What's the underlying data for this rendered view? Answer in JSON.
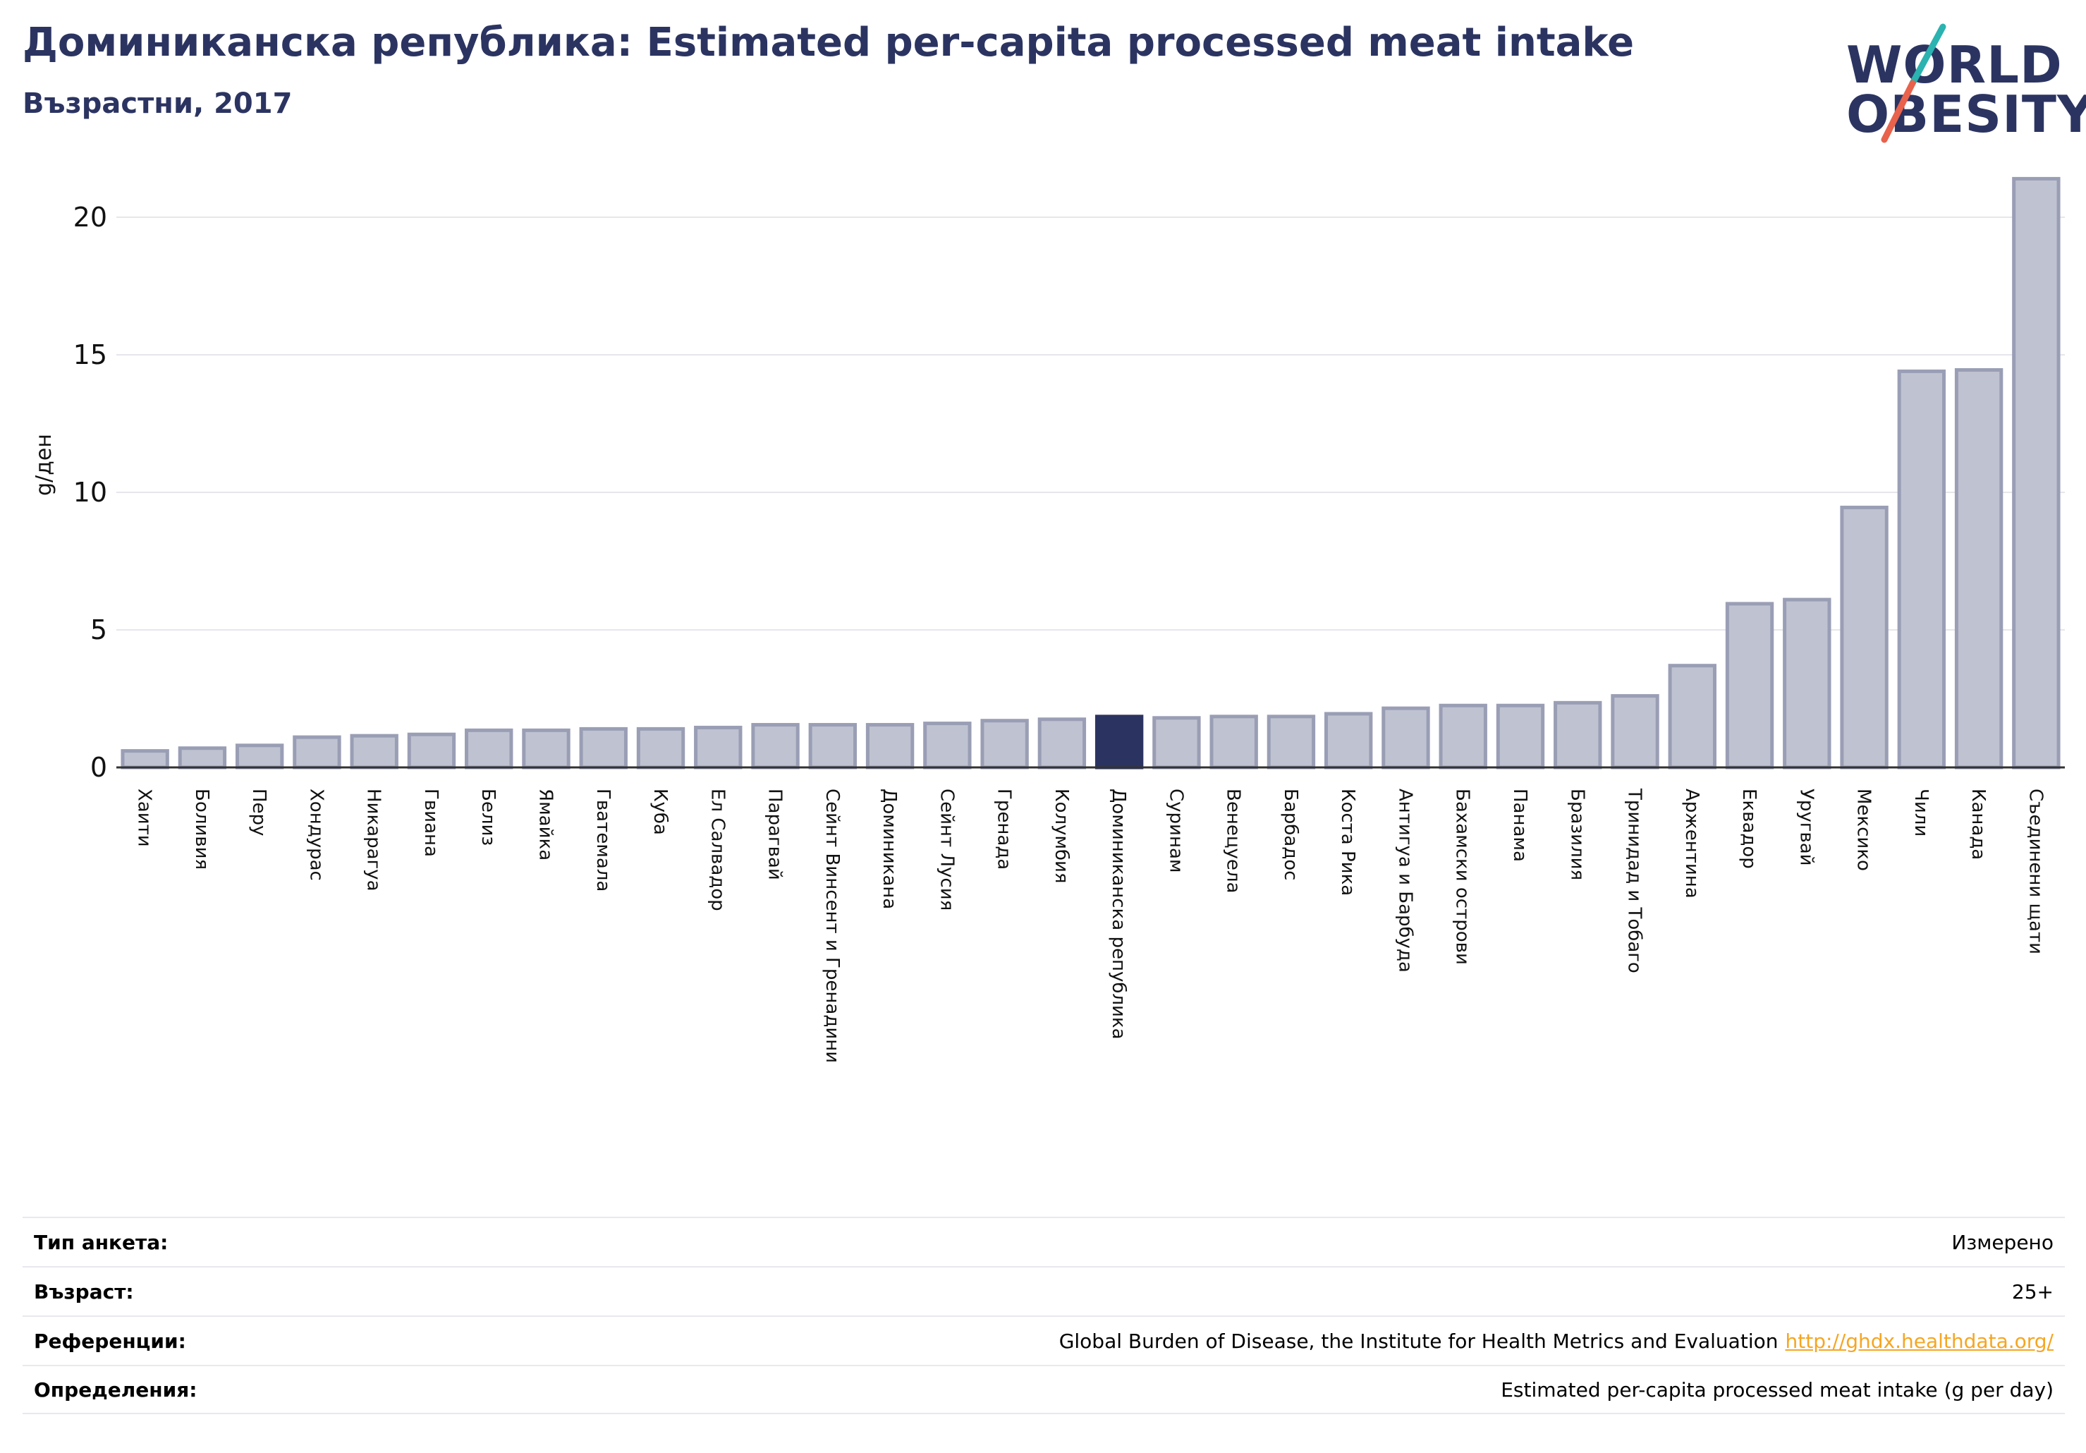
{
  "header": {
    "title": "Доминиканска република: Estimated per-capita processed meat intake",
    "subtitle": "Възрастни, 2017"
  },
  "logo": {
    "line1": "WORLD",
    "line2": "OBESITY",
    "colors": {
      "text": "#2b3461",
      "slash_top": "#2ab3b0",
      "slash_bottom": "#e8624c"
    }
  },
  "colors": {
    "bar_fill": "#bfc2d0",
    "bar_stroke": "#9a9eb5",
    "highlight": "#2b3461",
    "grid": "#e6e6ec",
    "axis": "#333333"
  },
  "chart_data": {
    "type": "bar",
    "ylabel": "g/ден",
    "ylim": [
      0,
      22
    ],
    "yticks": [
      0,
      5,
      10,
      15,
      20
    ],
    "grid": true,
    "highlight": "Доминиканска република",
    "categories": [
      "Хаити",
      "Боливия",
      "Перу",
      "Хондурас",
      "Никарагуа",
      "Гвиана",
      "Белиз",
      "Ямайка",
      "Гватемала",
      "Куба",
      "Ел Салвадор",
      "Парагвай",
      "Сейнт Винсент и Гренадини",
      "Доминикана",
      "Сейнт Лусия",
      "Гренада",
      "Колумбия",
      "Доминиканска република",
      "Суринам",
      "Венецуела",
      "Барбадос",
      "Коста Рика",
      "Антигуа и Барбуда",
      "Бахамски острови",
      "Панама",
      "Бразилия",
      "Тринидад и Тобаго",
      "Аржентина",
      "Еквадор",
      "Уругвай",
      "Мексико",
      "Чили",
      "Канада",
      "Съединени щати"
    ],
    "values": [
      0.6,
      0.7,
      0.8,
      1.1,
      1.15,
      1.2,
      1.35,
      1.35,
      1.4,
      1.4,
      1.45,
      1.55,
      1.55,
      1.55,
      1.6,
      1.7,
      1.75,
      1.85,
      1.8,
      1.85,
      1.85,
      1.95,
      2.15,
      2.25,
      2.25,
      2.35,
      2.6,
      3.7,
      5.95,
      6.1,
      9.45,
      14.4,
      14.45,
      21.4
    ]
  },
  "meta": {
    "rows": [
      {
        "key": "Тип анкета:",
        "value": "Измерено"
      },
      {
        "key": "Възраст:",
        "value": "25+"
      },
      {
        "key": "Референции:",
        "value": "Global Burden of Disease, the Institute for Health Metrics and Evaluation",
        "link": "http://ghdx.healthdata.org/"
      },
      {
        "key": "Определения:",
        "value": "Estimated per-capita processed meat intake (g per day)"
      }
    ]
  }
}
